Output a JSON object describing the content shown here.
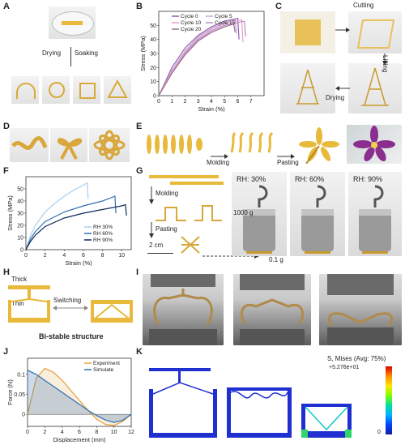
{
  "panels": {
    "A": {
      "label": "A",
      "drying": "Drying",
      "soaking": "Soaking"
    },
    "B": {
      "label": "B"
    },
    "C": {
      "label": "C",
      "cutting": "Cutting",
      "lifting": "Lifting",
      "drying": "Drying"
    },
    "D": {
      "label": "D"
    },
    "E": {
      "label": "E",
      "molding": "Molding",
      "pasting": "Pasting"
    },
    "F": {
      "label": "F"
    },
    "G": {
      "label": "G",
      "molding": "Molding",
      "pasting": "Pasting",
      "scale": "2 cm",
      "weight": "1000 g",
      "mass": "0.1 g",
      "rh1": "RH: 30%",
      "rh2": "RH: 60%",
      "rh3": "RH: 90%"
    },
    "H": {
      "label": "H",
      "thick": "Thick",
      "thin": "Thin",
      "switching": "Switching",
      "caption": "Bi-stable structure"
    },
    "I": {
      "label": "I"
    },
    "J": {
      "label": "J"
    },
    "K": {
      "label": "K",
      "legend_title": "S, Mises (Avg: 75%)",
      "max": "+5.276e+01",
      "min": "0"
    }
  },
  "chart_data": [
    {
      "id": "B",
      "type": "line",
      "xlabel": "Strain (%)",
      "ylabel": "Stress (MPa)",
      "xlim": [
        0,
        8
      ],
      "ylim": [
        0,
        60
      ],
      "xticks": [
        0,
        1,
        2,
        3,
        4,
        5,
        6,
        7
      ],
      "yticks": [
        0,
        10,
        20,
        30,
        40,
        50
      ],
      "legend": "top-center",
      "series": [
        {
          "name": "Cycle 0",
          "color": "#8b5fb0",
          "x": [
            0,
            0.5,
            1,
            2,
            3,
            4,
            5,
            6.0,
            6.1
          ],
          "y": [
            0,
            10,
            20,
            34,
            43,
            49,
            53,
            55,
            40
          ]
        },
        {
          "name": "Cycle 5",
          "color": "#c9a6dd",
          "x": [
            0,
            0.5,
            1,
            2,
            3,
            4,
            5,
            5.8,
            5.9
          ],
          "y": [
            0,
            9,
            18,
            32,
            42,
            48,
            52,
            54,
            44
          ]
        },
        {
          "name": "Cycle 10",
          "color": "#e6a0c0",
          "x": [
            0,
            0.5,
            1,
            2,
            3,
            4,
            5,
            6.3,
            6.4
          ],
          "y": [
            0,
            9,
            17,
            31,
            41,
            47,
            51,
            54,
            38
          ]
        },
        {
          "name": "Cycle 15",
          "color": "#b58bcf",
          "x": [
            0,
            0.5,
            1,
            2,
            3,
            4,
            5,
            6.5,
            6.6
          ],
          "y": [
            0,
            8,
            16,
            30,
            40,
            46,
            50,
            53,
            42
          ]
        },
        {
          "name": "Cycle 20",
          "color": "#9a6f8a",
          "x": [
            0,
            0.5,
            1,
            2,
            3,
            4,
            5,
            5.7,
            5.8
          ],
          "y": [
            0,
            8,
            16,
            29,
            39,
            45,
            49,
            51,
            45
          ]
        }
      ]
    },
    {
      "id": "F",
      "type": "line",
      "xlabel": "Strain (%)",
      "ylabel": "Stress (MPa)",
      "xlim": [
        0,
        11
      ],
      "ylim": [
        0,
        60
      ],
      "xticks": [
        0,
        2,
        4,
        6,
        8,
        10
      ],
      "yticks": [
        0,
        10,
        20,
        30,
        40,
        50
      ],
      "legend": "bottom-right",
      "series": [
        {
          "name": "RH 30%",
          "color": "#a9cdea",
          "x": [
            0,
            0.5,
            1,
            2,
            3,
            4,
            5,
            6,
            6.4,
            6.5
          ],
          "y": [
            0,
            12,
            20,
            31,
            38,
            44,
            49,
            53,
            55,
            42
          ]
        },
        {
          "name": "RH 60%",
          "color": "#2e6fb3",
          "x": [
            0,
            0.5,
            1,
            2,
            4,
            6,
            8,
            9,
            9.3,
            9.4
          ],
          "y": [
            0,
            9,
            15,
            23,
            31,
            36,
            40,
            43,
            44,
            30
          ]
        },
        {
          "name": "RH 90%",
          "color": "#0c2a5a",
          "x": [
            0,
            0.5,
            1,
            2,
            4,
            6,
            8,
            10,
            10.4,
            10.5
          ],
          "y": [
            0,
            7,
            12,
            19,
            26,
            30,
            33,
            36,
            37,
            28
          ]
        }
      ]
    },
    {
      "id": "J",
      "type": "line",
      "xlabel": "Displacement (mm)",
      "ylabel": "Force (N)",
      "xlim": [
        0,
        12
      ],
      "ylim": [
        -0.03,
        0.14
      ],
      "xticks": [
        0,
        2,
        4,
        6,
        8,
        10,
        12
      ],
      "yticks": [
        0,
        0.05,
        0.1
      ],
      "legend": "top-right",
      "series": [
        {
          "name": "Experiment",
          "color": "#e6a23c",
          "x": [
            0,
            1,
            2,
            3,
            4,
            5,
            6,
            7,
            8,
            9,
            10,
            11,
            12
          ],
          "y": [
            0,
            0.09,
            0.115,
            0.105,
            0.085,
            0.06,
            0.035,
            0.01,
            -0.012,
            -0.025,
            -0.028,
            -0.018,
            0
          ]
        },
        {
          "name": "Simulate",
          "color": "#2f6fb6",
          "x": [
            0,
            1,
            2,
            3,
            4,
            5,
            6,
            7,
            8,
            9,
            10,
            11,
            12
          ],
          "y": [
            0.11,
            0.1,
            0.085,
            0.07,
            0.055,
            0.04,
            0.025,
            0.01,
            -0.003,
            -0.014,
            -0.02,
            -0.015,
            0
          ]
        }
      ]
    }
  ]
}
